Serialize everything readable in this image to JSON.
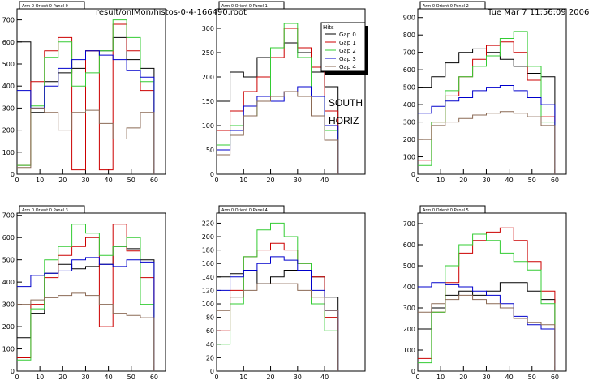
{
  "header": {
    "filename": "result/onlMon/histos-0-4-166490.root",
    "datetime": "Tue Mar  7 11:56:09 2006"
  },
  "labels": {
    "line1": "SOUTH",
    "line2": "HORIZ"
  },
  "legend": {
    "title": "Hits",
    "entries": [
      "Gap 0",
      "Gap 1",
      "Gap 2",
      "Gap 3",
      "Gap 4"
    ],
    "colors": [
      "#000000",
      "#cc0000",
      "#33cc33",
      "#0000cc",
      "#8b6a55"
    ]
  },
  "chart_data": [
    {
      "type": "line",
      "title": "Arm 0 Orient 0 Panel 0",
      "xlim": [
        0,
        65
      ],
      "ylim": [
        0,
        750
      ],
      "xticks": [
        0,
        10,
        20,
        30,
        40,
        50,
        60
      ],
      "yticks": [
        0,
        100,
        200,
        300,
        400,
        500,
        600,
        700
      ],
      "x": [
        0,
        6,
        12,
        18,
        24,
        30,
        36,
        42,
        48,
        54,
        60
      ],
      "series": [
        {
          "name": "Gap 0",
          "values": [
            600,
            280,
            420,
            460,
            480,
            560,
            560,
            620,
            520,
            480,
            0
          ]
        },
        {
          "name": "Gap 1",
          "values": [
            40,
            420,
            560,
            620,
            20,
            560,
            20,
            680,
            560,
            380,
            0
          ]
        },
        {
          "name": "Gap 2",
          "values": [
            40,
            310,
            530,
            600,
            400,
            460,
            560,
            700,
            620,
            420,
            0
          ]
        },
        {
          "name": "Gap 3",
          "values": [
            380,
            300,
            400,
            480,
            520,
            560,
            540,
            520,
            470,
            440,
            0
          ]
        },
        {
          "name": "Gap 4",
          "values": [
            30,
            300,
            280,
            200,
            280,
            290,
            230,
            160,
            210,
            280,
            0
          ]
        }
      ]
    },
    {
      "type": "line",
      "title": "Arm 0 Orient 0 Panel 1",
      "xlim": [
        0,
        55
      ],
      "ylim": [
        0,
        340
      ],
      "xticks": [
        0,
        10,
        20,
        30,
        40
      ],
      "yticks": [
        0,
        50,
        100,
        150,
        200,
        250,
        300
      ],
      "x": [
        0,
        5,
        10,
        15,
        20,
        25,
        30,
        35,
        40,
        45
      ],
      "series": [
        {
          "name": "Gap 0",
          "values": [
            150,
            210,
            200,
            240,
            260,
            270,
            250,
            210,
            180,
            0
          ]
        },
        {
          "name": "Gap 1",
          "values": [
            90,
            130,
            170,
            200,
            240,
            300,
            260,
            220,
            130,
            0
          ]
        },
        {
          "name": "Gap 2",
          "values": [
            60,
            100,
            120,
            150,
            260,
            310,
            240,
            160,
            90,
            0
          ]
        },
        {
          "name": "Gap 3",
          "values": [
            50,
            90,
            140,
            160,
            150,
            170,
            180,
            160,
            100,
            0
          ]
        },
        {
          "name": "Gap 4",
          "values": [
            40,
            80,
            120,
            150,
            160,
            170,
            160,
            120,
            70,
            0
          ]
        }
      ]
    },
    {
      "type": "line",
      "title": "Arm 0 Orient 0 Panel 2",
      "xlim": [
        0,
        65
      ],
      "ylim": [
        0,
        950
      ],
      "xticks": [
        0,
        10,
        20,
        30,
        40,
        50,
        60
      ],
      "yticks": [
        0,
        100,
        200,
        300,
        400,
        500,
        600,
        700,
        800,
        900
      ],
      "x": [
        0,
        6,
        12,
        18,
        24,
        30,
        36,
        42,
        48,
        54,
        60
      ],
      "series": [
        {
          "name": "Gap 0",
          "values": [
            500,
            560,
            640,
            700,
            720,
            700,
            660,
            620,
            580,
            560,
            0
          ]
        },
        {
          "name": "Gap 1",
          "values": [
            80,
            300,
            450,
            560,
            660,
            740,
            760,
            700,
            540,
            330,
            0
          ]
        },
        {
          "name": "Gap 2",
          "values": [
            50,
            300,
            480,
            560,
            620,
            680,
            780,
            820,
            620,
            300,
            0
          ]
        },
        {
          "name": "Gap 3",
          "values": [
            350,
            390,
            420,
            440,
            480,
            500,
            510,
            480,
            440,
            400,
            0
          ]
        },
        {
          "name": "Gap 4",
          "values": [
            200,
            280,
            300,
            320,
            340,
            350,
            360,
            350,
            330,
            280,
            0
          ]
        }
      ]
    },
    {
      "type": "line",
      "title": "Arm 0 Orient 0 Panel 3",
      "xlim": [
        0,
        65
      ],
      "ylim": [
        0,
        710
      ],
      "xticks": [
        0,
        10,
        20,
        30,
        40,
        50,
        60
      ],
      "yticks": [
        0,
        100,
        200,
        300,
        400,
        500,
        600,
        700
      ],
      "x": [
        0,
        6,
        12,
        18,
        24,
        30,
        36,
        42,
        48,
        54,
        60
      ],
      "series": [
        {
          "name": "Gap 0",
          "values": [
            150,
            260,
            440,
            480,
            460,
            470,
            480,
            560,
            550,
            500,
            0
          ]
        },
        {
          "name": "Gap 1",
          "values": [
            60,
            300,
            420,
            520,
            560,
            600,
            200,
            660,
            540,
            420,
            0
          ]
        },
        {
          "name": "Gap 2",
          "values": [
            50,
            280,
            500,
            560,
            660,
            620,
            520,
            560,
            600,
            300,
            0
          ]
        },
        {
          "name": "Gap 3",
          "values": [
            380,
            430,
            440,
            450,
            500,
            510,
            480,
            470,
            500,
            490,
            0
          ]
        },
        {
          "name": "Gap 4",
          "values": [
            300,
            320,
            330,
            340,
            350,
            340,
            300,
            260,
            250,
            240,
            0
          ]
        }
      ]
    },
    {
      "type": "line",
      "title": "Arm 0 Orient 0 Panel 4",
      "xlim": [
        0,
        55
      ],
      "ylim": [
        0,
        235
      ],
      "xticks": [
        0,
        10,
        20,
        30,
        40
      ],
      "yticks": [
        0,
        20,
        40,
        60,
        80,
        100,
        120,
        140,
        160,
        180,
        200,
        220
      ],
      "x": [
        0,
        5,
        10,
        15,
        20,
        25,
        30,
        35,
        40,
        45
      ],
      "series": [
        {
          "name": "Gap 0",
          "values": [
            140,
            145,
            150,
            130,
            140,
            150,
            150,
            140,
            110,
            0
          ]
        },
        {
          "name": "Gap 1",
          "values": [
            60,
            120,
            170,
            180,
            190,
            180,
            160,
            140,
            80,
            0
          ]
        },
        {
          "name": "Gap 2",
          "values": [
            40,
            100,
            170,
            210,
            220,
            200,
            160,
            100,
            60,
            0
          ]
        },
        {
          "name": "Gap 3",
          "values": [
            120,
            140,
            150,
            160,
            170,
            165,
            150,
            120,
            90,
            0
          ]
        },
        {
          "name": "Gap 4",
          "values": [
            90,
            110,
            120,
            130,
            130,
            130,
            120,
            110,
            90,
            0
          ]
        }
      ]
    },
    {
      "type": "line",
      "title": "Arm 0 Orient 0 Panel 5",
      "xlim": [
        0,
        65
      ],
      "ylim": [
        0,
        750
      ],
      "xticks": [
        0,
        10,
        20,
        30,
        40,
        50,
        60
      ],
      "yticks": [
        0,
        100,
        200,
        300,
        400,
        500,
        600,
        700
      ],
      "x": [
        0,
        6,
        12,
        18,
        24,
        30,
        36,
        42,
        48,
        54,
        60
      ],
      "series": [
        {
          "name": "Gap 0",
          "values": [
            200,
            300,
            360,
            380,
            360,
            380,
            420,
            420,
            380,
            340,
            0
          ]
        },
        {
          "name": "Gap 1",
          "values": [
            60,
            280,
            420,
            560,
            620,
            660,
            680,
            620,
            520,
            380,
            0
          ]
        },
        {
          "name": "Gap 2",
          "values": [
            40,
            280,
            500,
            600,
            650,
            620,
            560,
            520,
            480,
            320,
            0
          ]
        },
        {
          "name": "Gap 3",
          "values": [
            400,
            420,
            410,
            400,
            380,
            360,
            320,
            260,
            220,
            200,
            0
          ]
        },
        {
          "name": "Gap 4",
          "values": [
            280,
            320,
            340,
            360,
            340,
            320,
            300,
            250,
            230,
            220,
            0
          ]
        }
      ]
    }
  ]
}
